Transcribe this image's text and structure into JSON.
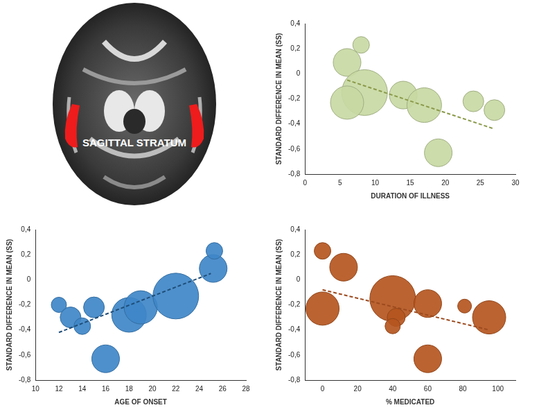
{
  "brain_image": {
    "label": "SAGITTAL STRATUM"
  },
  "chart_data": [
    {
      "type": "bubble",
      "x_label": "DURATION OF ILLNESS",
      "y_label": "STANDARD DIFFERENCE IN MEAN (SS)",
      "xlim": [
        0,
        30
      ],
      "xticks": [
        0,
        5,
        10,
        15,
        20,
        25,
        30
      ],
      "ylim": [
        -0.8,
        0.4
      ],
      "yticks": [
        {
          "value": -0.8,
          "label": "-0,8"
        },
        {
          "value": -0.6,
          "label": "-0,6"
        },
        {
          "value": -0.4,
          "label": "-0,4"
        },
        {
          "value": -0.2,
          "label": "-0,2"
        },
        0,
        {
          "value": 0.2,
          "label": "0,2"
        },
        {
          "value": 0.4,
          "label": "0,4"
        }
      ],
      "grid": false,
      "color": "#c8d9a3",
      "x": [
        8,
        6,
        8.5,
        6,
        14,
        17,
        24,
        27,
        19
      ],
      "y": [
        0.23,
        0.09,
        -0.15,
        -0.23,
        -0.17,
        -0.25,
        -0.22,
        -0.29,
        -0.63
      ],
      "sizes": [
        12,
        20,
        33,
        24,
        20,
        25,
        15,
        15,
        20
      ],
      "trend": {
        "x": [
          6,
          27
        ],
        "y": [
          -0.05,
          -0.44
        ],
        "color": "#8a9a4a",
        "line_style": "dashed"
      }
    },
    {
      "type": "bubble",
      "x_label": "AGE OF ONSET",
      "y_label": "STANDARD DIFFERENCE IN MEAN (SS)",
      "xlim": [
        10,
        28
      ],
      "xticks": [
        10,
        12,
        14,
        16,
        18,
        20,
        22,
        24,
        26,
        28
      ],
      "ylim": [
        -0.8,
        0.4
      ],
      "yticks": [
        {
          "value": -0.8,
          "label": "-0,8"
        },
        {
          "value": -0.6,
          "label": "-0,6"
        },
        {
          "value": -0.4,
          "label": "-0,4"
        },
        {
          "value": -0.2,
          "label": "-0,2"
        },
        0,
        {
          "value": 0.2,
          "label": "0,2"
        },
        {
          "value": 0.4,
          "label": "0,4"
        }
      ],
      "grid": false,
      "color": "#3f87c8",
      "x": [
        12,
        13,
        14,
        15,
        16,
        18,
        19,
        22,
        25.2,
        25.3
      ],
      "y": [
        -0.2,
        -0.3,
        -0.37,
        -0.22,
        -0.63,
        -0.28,
        -0.22,
        -0.13,
        0.09,
        0.23
      ],
      "sizes": [
        11,
        15,
        12,
        15,
        20,
        25,
        24,
        33,
        20,
        12
      ],
      "trend": {
        "x": [
          12,
          25
        ],
        "y": [
          -0.42,
          0.05
        ],
        "color": "#1f4e79",
        "line_style": "dashed"
      }
    },
    {
      "type": "bubble",
      "x_label": "% MEDICATED",
      "y_label": "STANDARD DIFFERENCE IN MEAN (SS)",
      "xlim": [
        -10,
        110
      ],
      "xticks": [
        0,
        20,
        40,
        60,
        80,
        100
      ],
      "ylim": [
        -0.8,
        0.4
      ],
      "yticks": [
        {
          "value": -0.8,
          "label": "-0,8"
        },
        {
          "value": -0.6,
          "label": "-0,6"
        },
        {
          "value": -0.4,
          "label": "-0,4"
        },
        {
          "value": -0.2,
          "label": "-0,2"
        },
        0,
        {
          "value": 0.2,
          "label": "0,2"
        },
        {
          "value": 0.4,
          "label": "0,4"
        }
      ],
      "grid": false,
      "color": "#b5561f",
      "x": [
        0,
        12,
        0,
        40,
        42,
        40,
        60,
        60,
        81,
        95
      ],
      "y": [
        0.23,
        0.1,
        -0.23,
        -0.15,
        -0.3,
        -0.37,
        -0.19,
        -0.63,
        -0.21,
        -0.3
      ],
      "sizes": [
        12,
        20,
        24,
        33,
        13,
        11,
        20,
        20,
        10,
        24
      ],
      "trend": {
        "x": [
          0,
          95
        ],
        "y": [
          -0.08,
          -0.4
        ],
        "color": "#9c4a1e",
        "line_style": "dashed"
      }
    }
  ]
}
